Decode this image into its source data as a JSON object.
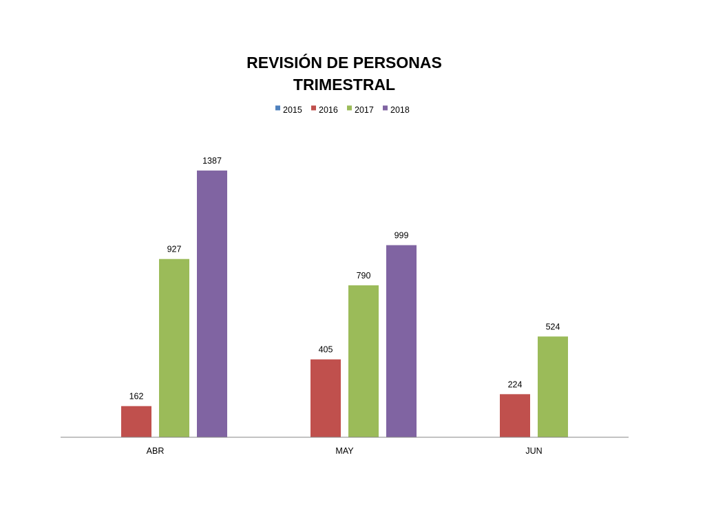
{
  "chart_data": {
    "type": "bar",
    "title": "REVISIÓN DE PERSONAS TRIMESTRAL",
    "title_lines": [
      "REVISIÓN DE PERSONAS",
      "TRIMESTRAL"
    ],
    "categories": [
      "ABR",
      "MAY",
      "JUN"
    ],
    "series": [
      {
        "name": "2015",
        "color": "#4F81BD",
        "values": [
          null,
          null,
          null
        ]
      },
      {
        "name": "2016",
        "color": "#C0504D",
        "values": [
          162,
          405,
          224
        ]
      },
      {
        "name": "2017",
        "color": "#9BBB59",
        "values": [
          927,
          790,
          524
        ]
      },
      {
        "name": "2018",
        "color": "#8064A2",
        "values": [
          1387,
          999,
          null
        ]
      }
    ],
    "data_labels": true,
    "ylim": [
      0,
      1600
    ],
    "grid": false,
    "legend_position": "top-center",
    "xlabel": "",
    "ylabel": ""
  }
}
